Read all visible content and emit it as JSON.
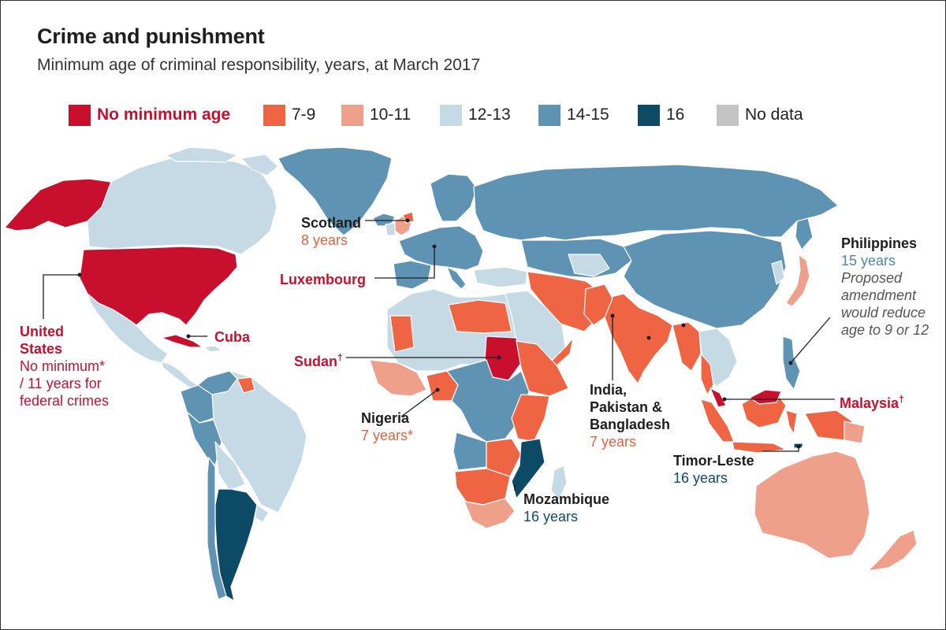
{
  "title": "Crime and punishment",
  "subtitle": "Minimum age of criminal responsibility, years, at March 2017",
  "colors": {
    "none": "#c8102e",
    "a7_9": "#ef6443",
    "a10_11": "#eea08a",
    "a12_13": "#c6dae6",
    "a14_15": "#5f93b3",
    "a16": "#0d4a66",
    "nodata": "#c4c4c4"
  },
  "legend": [
    {
      "label": "No minimum age",
      "color": "#c8102e"
    },
    {
      "label": "7-9",
      "color": "#ef6443"
    },
    {
      "label": "10-11",
      "color": "#eea08a"
    },
    {
      "label": "12-13",
      "color": "#c6dae6"
    },
    {
      "label": "14-15",
      "color": "#5f93b3"
    },
    {
      "label": "16",
      "color": "#0d4a66"
    },
    {
      "label": "No data",
      "color": "#c4c4c4"
    }
  ],
  "annotations": {
    "scotland": {
      "name": "Scotland",
      "value": "8 years"
    },
    "luxembourg": {
      "name": "Luxembourg"
    },
    "usa": {
      "name_1": "United",
      "name_2": "States",
      "note_1": "No minimum*",
      "note_2": "/ 11 years for",
      "note_3": "federal crimes"
    },
    "cuba": {
      "name": "Cuba"
    },
    "sudan": {
      "name": "Sudan",
      "mark": "†"
    },
    "nigeria": {
      "name": "Nigeria",
      "value": "7 years*"
    },
    "india": {
      "name_1": "India,",
      "name_2": "Pakistan &",
      "name_3": "Bangladesh",
      "value": "7 years"
    },
    "philippines": {
      "name": "Philippines",
      "value": "15 years",
      "note_1": "Proposed",
      "note_2": "amendment",
      "note_3": "would reduce",
      "note_4": "age to 9 or 12"
    },
    "malaysia": {
      "name": "Malaysia",
      "mark": "†"
    },
    "timor": {
      "name": "Timor-Leste",
      "value": "16 years"
    },
    "mozambique": {
      "name": "Mozambique",
      "value": "16 years"
    }
  }
}
